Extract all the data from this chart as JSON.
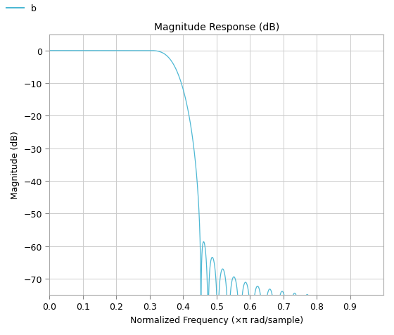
{
  "title": "Magnitude Response (dB)",
  "xlabel": "Normalized Frequency (×π rad/sample)",
  "ylabel": "Magnitude (dB)",
  "ylim": [
    -75,
    5
  ],
  "xlim": [
    0,
    1
  ],
  "yticks": [
    0,
    -10,
    -20,
    -30,
    -40,
    -50,
    -60,
    -70
  ],
  "xticks": [
    0,
    0.1,
    0.2,
    0.3,
    0.4,
    0.5,
    0.6,
    0.7,
    0.8,
    0.9
  ],
  "line_color": "#4db8d4",
  "legend_label": "b",
  "legend_line_color": "#4db8d4",
  "background_color": "#ffffff",
  "grid_color": "#cccccc",
  "title_fontsize": 10,
  "label_fontsize": 9,
  "tick_fontsize": 9
}
